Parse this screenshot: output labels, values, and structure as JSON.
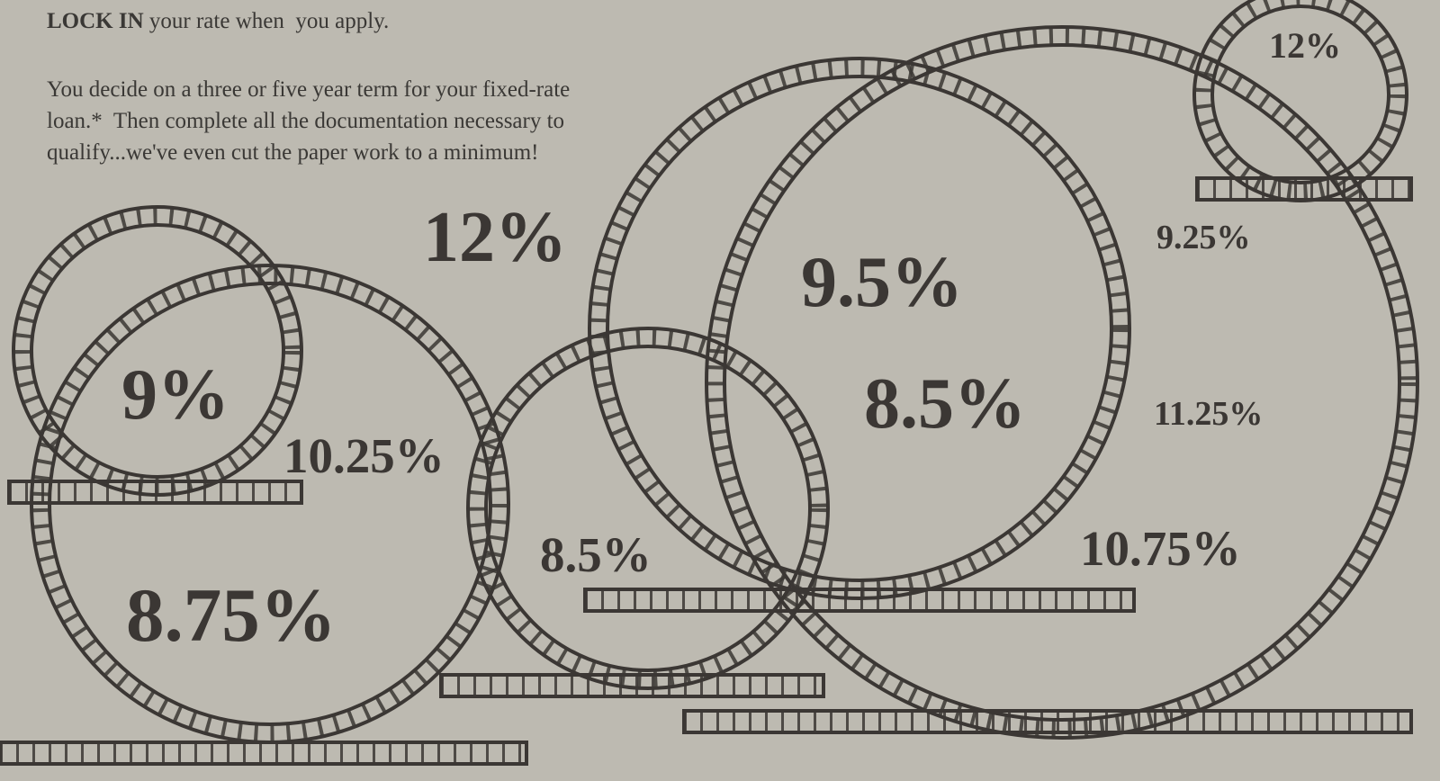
{
  "document": {
    "intro": {
      "bold": "LOCK IN",
      "text": " your rate when  you apply."
    },
    "paragraph": [
      "You decide on a three or five year term for your fixed-rate",
      "loan.*  Then complete all the documentation necessary to",
      "qualify...we've even cut the paper work to a minimum!"
    ],
    "rates": [
      "12%",
      "9.5%",
      "8.5%",
      "9%",
      "10.25%",
      "8.75%",
      "8.5%",
      "12%",
      "9.25%",
      "11.25%",
      "10.75%"
    ]
  }
}
